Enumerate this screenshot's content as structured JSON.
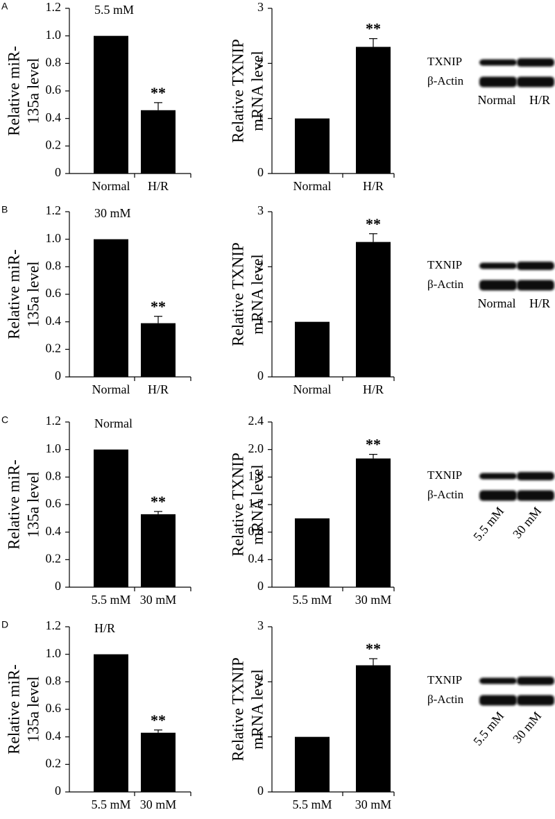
{
  "panel_labels": [
    "A",
    "B",
    "C",
    "D"
  ],
  "chart_data": [
    {
      "type": "bar",
      "annotation": "5.5 mM",
      "ylabel": [
        "Relative miR-",
        "135a level"
      ],
      "categories": [
        "Normal",
        "H/R"
      ],
      "values": [
        1,
        0.46
      ],
      "errors": [
        0,
        0.055
      ],
      "significance_labels": [
        null,
        "**"
      ],
      "color": "#000000",
      "ylim": [
        0,
        1.2
      ],
      "yticks": [
        0,
        0.2,
        0.4,
        0.6,
        0.8,
        {
          "value": 1,
          "label": "1.0"
        },
        1.2
      ]
    },
    {
      "type": "bar",
      "ylabel": [
        "Relative TXNIP",
        "mRNA level"
      ],
      "categories": [
        "Normal",
        "H/R"
      ],
      "values": [
        1,
        2.3
      ],
      "errors": [
        0,
        0.15
      ],
      "significance_labels": [
        null,
        "**"
      ],
      "color": "#000000",
      "ylim": [
        0,
        3
      ],
      "yticks": [
        0,
        1,
        2,
        3
      ]
    },
    {
      "type": "bar",
      "annotation": "30 mM",
      "ylabel": [
        "Relative miR-",
        "135a level"
      ],
      "categories": [
        "Normal",
        "H/R"
      ],
      "values": [
        1,
        0.39
      ],
      "errors": [
        0,
        0.05
      ],
      "significance_labels": [
        null,
        "**"
      ],
      "color": "#000000",
      "ylim": [
        0,
        1.2
      ],
      "yticks": [
        0,
        0.2,
        0.4,
        0.6,
        0.8,
        {
          "value": 1,
          "label": "1.0"
        },
        1.2
      ]
    },
    {
      "type": "bar",
      "ylabel": [
        "Relative TXNIP",
        "mRNA level"
      ],
      "categories": [
        "Normal",
        "H/R"
      ],
      "values": [
        1,
        2.45
      ],
      "errors": [
        0,
        0.15
      ],
      "significance_labels": [
        null,
        "**"
      ],
      "color": "#000000",
      "ylim": [
        0,
        3
      ],
      "yticks": [
        0,
        1,
        2,
        3
      ]
    },
    {
      "type": "bar",
      "annotation": "Normal",
      "ylabel": [
        "Relative miR-",
        "135a level"
      ],
      "categories": [
        "5.5 mM",
        "30 mM"
      ],
      "values": [
        1,
        0.53
      ],
      "errors": [
        0,
        0.02
      ],
      "significance_labels": [
        null,
        "**"
      ],
      "color": "#000000",
      "ylim": [
        0,
        1.2
      ],
      "yticks": [
        0,
        0.2,
        0.4,
        0.6,
        0.8,
        {
          "value": 1,
          "label": "1.0"
        },
        1.2
      ]
    },
    {
      "type": "bar",
      "ylabel": [
        "Relative TXNIP",
        "mRNA level"
      ],
      "categories": [
        "5.5 mM",
        "30 mM"
      ],
      "values": [
        1,
        1.87
      ],
      "errors": [
        0,
        0.06
      ],
      "significance_labels": [
        null,
        "**"
      ],
      "color": "#000000",
      "ylim": [
        0,
        2.4
      ],
      "yticks": [
        0,
        0.4,
        0.8,
        1.2,
        1.6,
        {
          "value": 2,
          "label": "2.0"
        },
        2.4
      ]
    },
    {
      "type": "bar",
      "annotation": "H/R",
      "ylabel": [
        "Relative miR-",
        "135a level"
      ],
      "categories": [
        "5.5 mM",
        "30 mM"
      ],
      "values": [
        1,
        0.43
      ],
      "errors": [
        0,
        0.02
      ],
      "significance_labels": [
        null,
        "**"
      ],
      "color": "#000000",
      "ylim": [
        0,
        1.2
      ],
      "yticks": [
        0,
        0.2,
        0.4,
        0.6,
        0.8,
        {
          "value": 1,
          "label": "1.0"
        },
        1.2
      ]
    },
    {
      "type": "bar",
      "ylabel": [
        "Relative TXNIP",
        "mRNA level"
      ],
      "categories": [
        "5.5 mM",
        "30 mM"
      ],
      "values": [
        1,
        2.3
      ],
      "errors": [
        0,
        0.12
      ],
      "significance_labels": [
        null,
        "**"
      ],
      "color": "#000000",
      "ylim": [
        0,
        3
      ],
      "yticks": [
        0,
        1,
        2,
        3
      ]
    }
  ],
  "blots": [
    {
      "bands": [
        "TXNIP",
        "β-Actin"
      ],
      "lanes": [
        "Normal",
        "H/R"
      ]
    },
    {
      "bands": [
        "TXNIP",
        "β-Actin"
      ],
      "lanes": [
        "Normal",
        "H/R"
      ]
    },
    {
      "bands": [
        "TXNIP",
        "β-Actin"
      ],
      "lanes": [
        "5.5 mM",
        "30 mM"
      ],
      "rotated_lanes": true
    },
    {
      "bands": [
        "TXNIP",
        "β-Actin"
      ],
      "lanes": [
        "5.5 mM",
        "30 mM"
      ],
      "rotated_lanes": true
    }
  ]
}
